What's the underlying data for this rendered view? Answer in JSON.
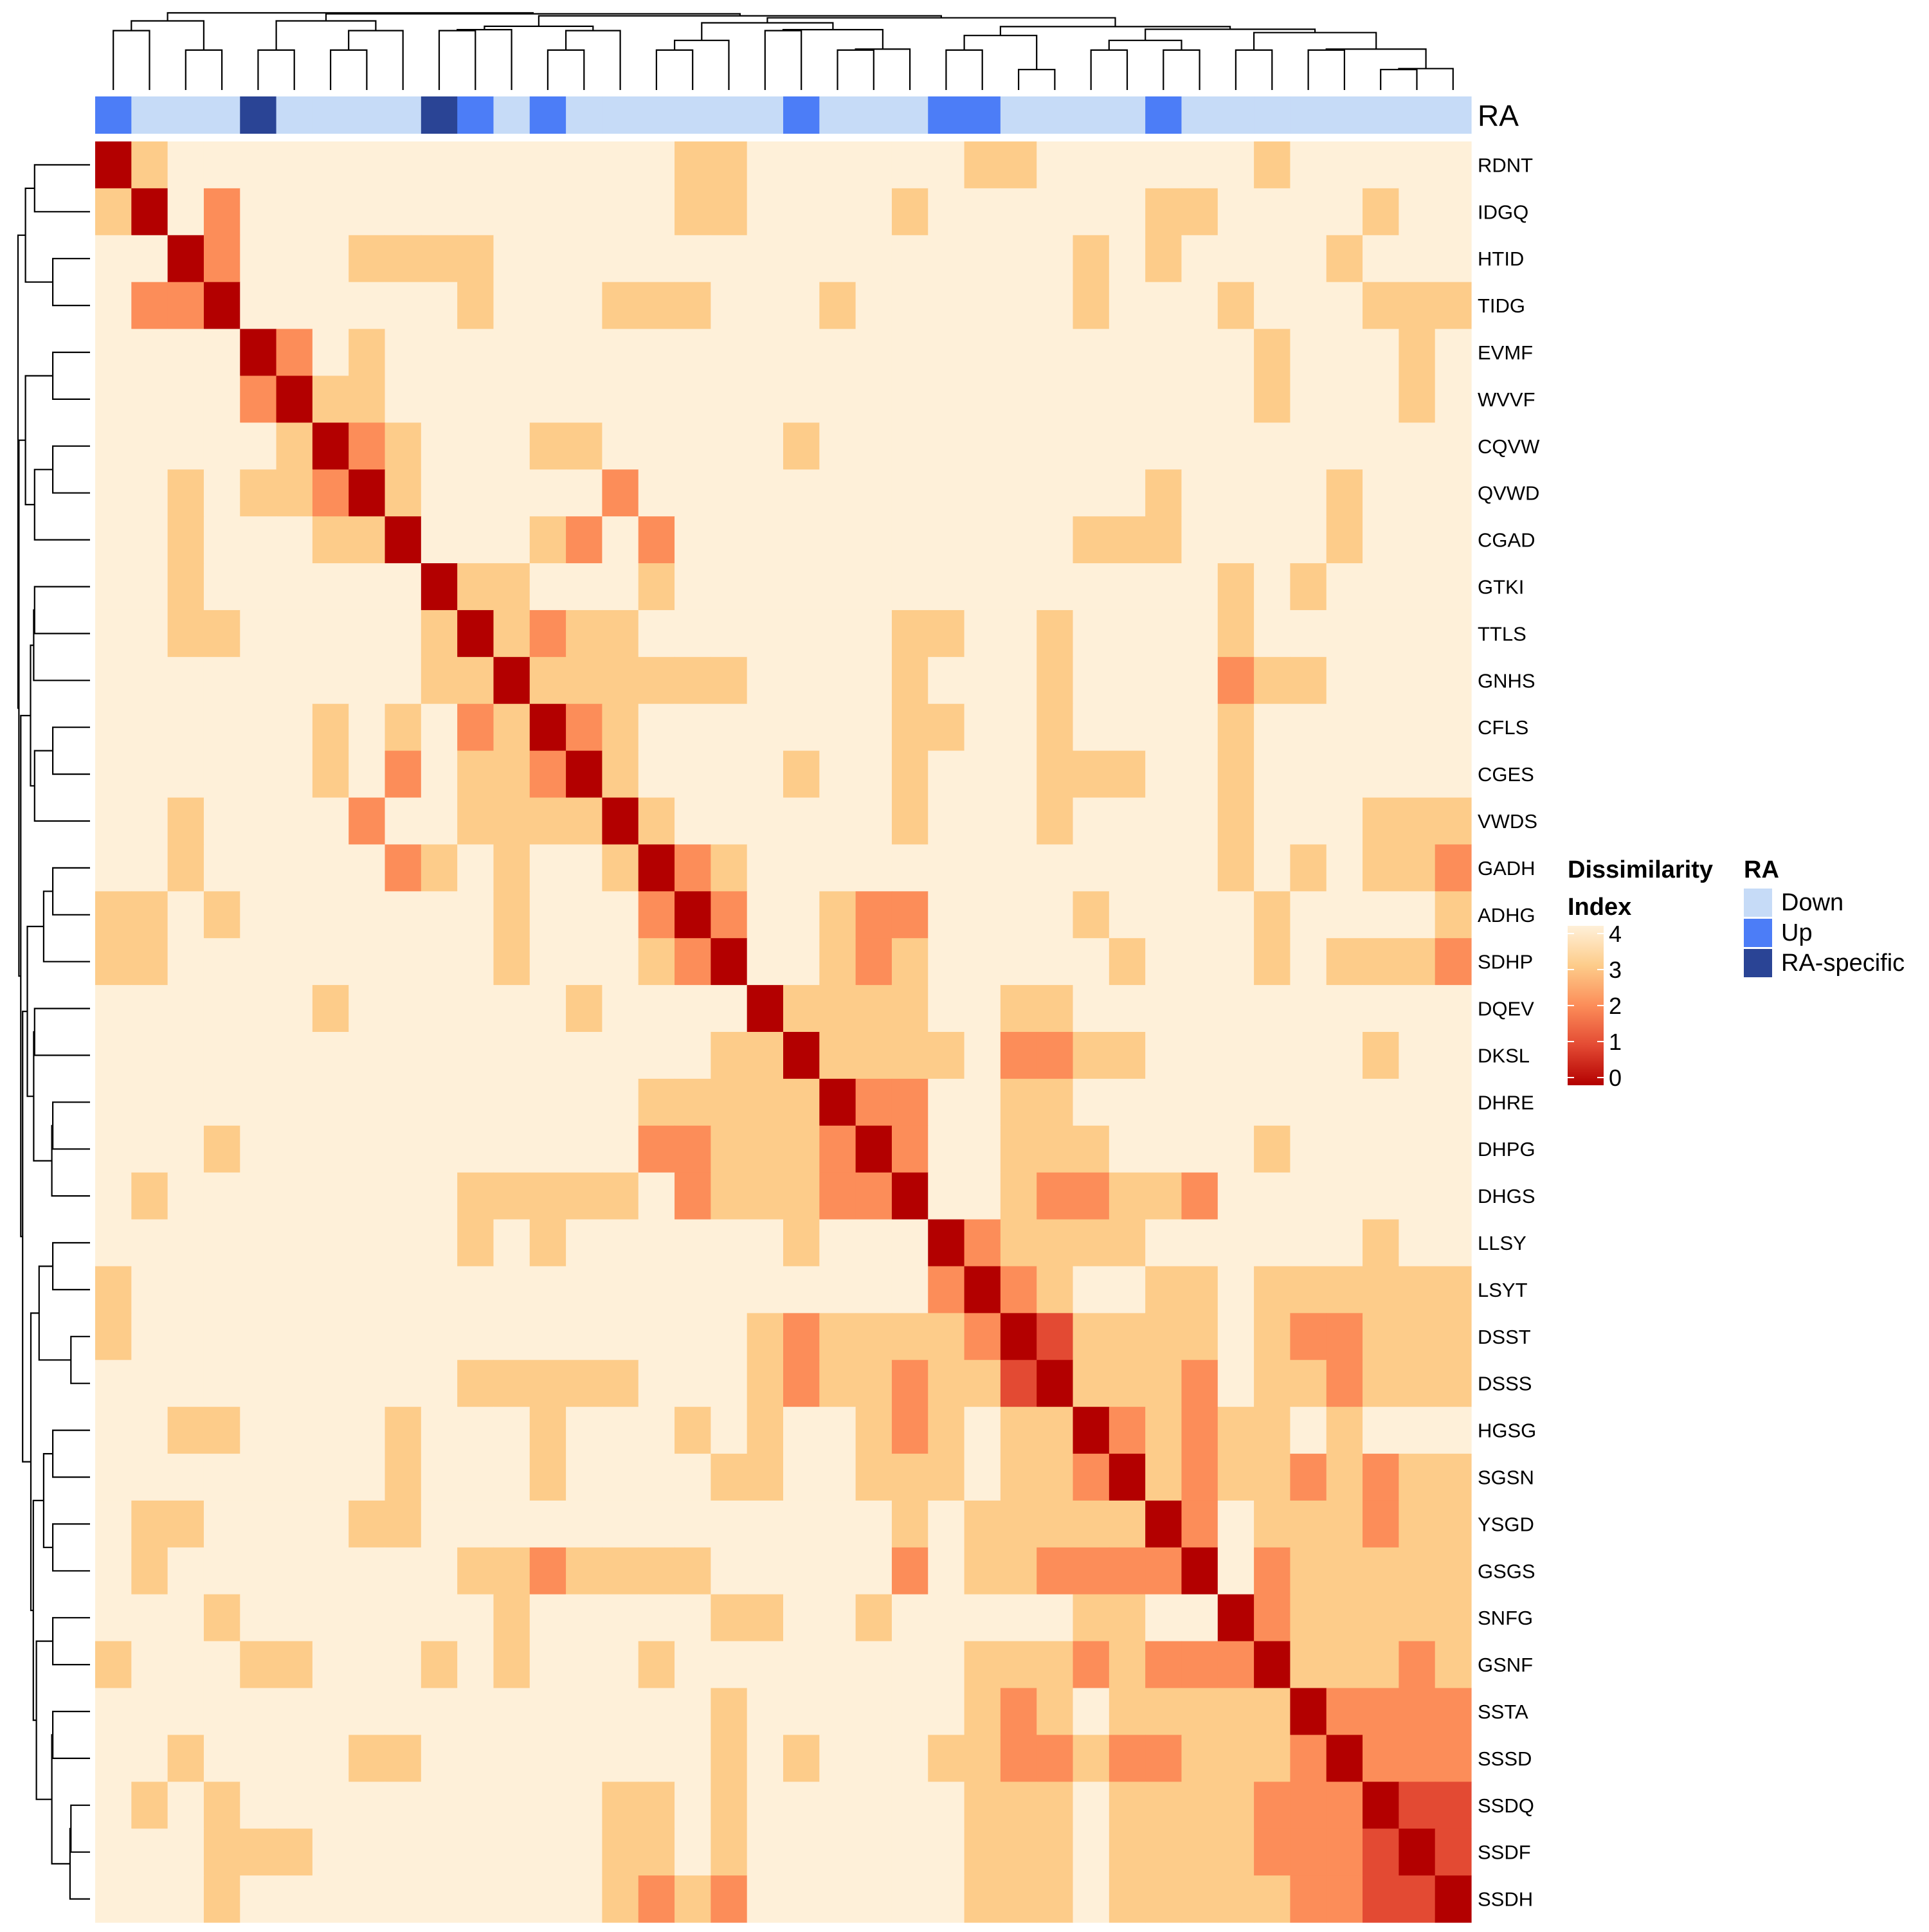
{
  "chart_data": {
    "type": "heatmap",
    "labels": [
      "RDNT",
      "IDGQ",
      "HTID",
      "TIDG",
      "EVMF",
      "WVVF",
      "CQVW",
      "QVWD",
      "CGAD",
      "GTKI",
      "TTLS",
      "GNHS",
      "CFLS",
      "CGES",
      "VWDS",
      "GADH",
      "ADHG",
      "SDHP",
      "DQEV",
      "DKSL",
      "DHRE",
      "DHPG",
      "DHGS",
      "LLSY",
      "LSYT",
      "DSST",
      "DSSS",
      "HGSG",
      "SGSN",
      "YSGD",
      "GSGS",
      "SNFG",
      "GSNF",
      "SSTA",
      "SSSD",
      "SSDQ",
      "SSDF",
      "SSDH"
    ],
    "ra_groups": [
      "Up",
      "Down",
      "Down",
      "Down",
      "RA-specific",
      "Down",
      "Down",
      "Down",
      "Down",
      "RA-specific",
      "Up",
      "Down",
      "Up",
      "Down",
      "Down",
      "Down",
      "Down",
      "Down",
      "Down",
      "Up",
      "Down",
      "Down",
      "Down",
      "Up",
      "Up",
      "Down",
      "Down",
      "Down",
      "Down",
      "Up",
      "Down",
      "Down",
      "Down",
      "Down",
      "Down",
      "Down",
      "Down",
      "Down"
    ],
    "matrix": [
      [
        0,
        3,
        4,
        4,
        4,
        4,
        4,
        4,
        4,
        4,
        4,
        4,
        4,
        4,
        4,
        4,
        3,
        3,
        4,
        4,
        4,
        4,
        4,
        4,
        3,
        3,
        4,
        4,
        4,
        4,
        4,
        4,
        3,
        4,
        4,
        4,
        4,
        4
      ],
      [
        3,
        0,
        4,
        2,
        4,
        4,
        4,
        4,
        4,
        4,
        4,
        4,
        4,
        4,
        4,
        4,
        3,
        3,
        4,
        4,
        4,
        4,
        3,
        4,
        4,
        4,
        4,
        4,
        4,
        3,
        3,
        4,
        4,
        4,
        4,
        3,
        4,
        4
      ],
      [
        4,
        4,
        0,
        2,
        4,
        4,
        4,
        3,
        3,
        3,
        3,
        4,
        4,
        4,
        4,
        4,
        4,
        4,
        4,
        4,
        4,
        4,
        4,
        4,
        4,
        4,
        4,
        3,
        4,
        3,
        4,
        4,
        4,
        4,
        3,
        4,
        4,
        4
      ],
      [
        4,
        2,
        2,
        0,
        4,
        4,
        4,
        4,
        4,
        4,
        3,
        4,
        4,
        4,
        3,
        3,
        3,
        4,
        4,
        4,
        3,
        4,
        4,
        4,
        4,
        4,
        4,
        3,
        4,
        4,
        4,
        3,
        4,
        4,
        4,
        3,
        3,
        3
      ],
      [
        4,
        4,
        4,
        4,
        0,
        2,
        4,
        3,
        4,
        4,
        4,
        4,
        4,
        4,
        4,
        4,
        4,
        4,
        4,
        4,
        4,
        4,
        4,
        4,
        4,
        4,
        4,
        4,
        4,
        4,
        4,
        4,
        3,
        4,
        4,
        4,
        3,
        4
      ],
      [
        4,
        4,
        4,
        4,
        2,
        0,
        3,
        3,
        4,
        4,
        4,
        4,
        4,
        4,
        4,
        4,
        4,
        4,
        4,
        4,
        4,
        4,
        4,
        4,
        4,
        4,
        4,
        4,
        4,
        4,
        4,
        4,
        3,
        4,
        4,
        4,
        3,
        4
      ],
      [
        4,
        4,
        4,
        4,
        4,
        3,
        0,
        2,
        3,
        4,
        4,
        4,
        3,
        3,
        4,
        4,
        4,
        4,
        4,
        3,
        4,
        4,
        4,
        4,
        4,
        4,
        4,
        4,
        4,
        4,
        4,
        4,
        4,
        4,
        4,
        4,
        4,
        4
      ],
      [
        4,
        4,
        3,
        4,
        3,
        3,
        2,
        0,
        3,
        4,
        4,
        4,
        4,
        4,
        2,
        4,
        4,
        4,
        4,
        4,
        4,
        4,
        4,
        4,
        4,
        4,
        4,
        4,
        4,
        3,
        4,
        4,
        4,
        4,
        3,
        4,
        4,
        4
      ],
      [
        4,
        4,
        3,
        4,
        4,
        4,
        3,
        3,
        0,
        4,
        4,
        4,
        3,
        2,
        4,
        2,
        4,
        4,
        4,
        4,
        4,
        4,
        4,
        4,
        4,
        4,
        4,
        3,
        3,
        3,
        4,
        4,
        4,
        4,
        3,
        4,
        4,
        4
      ],
      [
        4,
        4,
        3,
        4,
        4,
        4,
        4,
        4,
        4,
        0,
        3,
        3,
        4,
        4,
        4,
        3,
        4,
        4,
        4,
        4,
        4,
        4,
        4,
        4,
        4,
        4,
        4,
        4,
        4,
        4,
        4,
        3,
        4,
        3,
        4,
        4,
        4,
        4
      ],
      [
        4,
        4,
        3,
        3,
        4,
        4,
        4,
        4,
        4,
        3,
        0,
        3,
        2,
        3,
        3,
        4,
        4,
        4,
        4,
        4,
        4,
        4,
        3,
        3,
        4,
        4,
        3,
        4,
        4,
        4,
        4,
        3,
        4,
        4,
        4,
        4,
        4,
        4
      ],
      [
        4,
        4,
        4,
        4,
        4,
        4,
        4,
        4,
        4,
        3,
        3,
        0,
        3,
        3,
        3,
        3,
        3,
        3,
        4,
        4,
        4,
        4,
        3,
        4,
        4,
        4,
        3,
        4,
        4,
        4,
        4,
        2,
        3,
        3,
        4,
        4,
        4,
        4
      ],
      [
        4,
        4,
        4,
        4,
        4,
        4,
        3,
        4,
        3,
        4,
        2,
        3,
        0,
        2,
        3,
        4,
        4,
        4,
        4,
        4,
        4,
        4,
        3,
        3,
        4,
        4,
        3,
        4,
        4,
        4,
        4,
        3,
        4,
        4,
        4,
        4,
        4,
        4
      ],
      [
        4,
        4,
        4,
        4,
        4,
        4,
        3,
        4,
        2,
        4,
        3,
        3,
        2,
        0,
        3,
        4,
        4,
        4,
        4,
        3,
        4,
        4,
        3,
        4,
        4,
        4,
        3,
        3,
        3,
        4,
        4,
        3,
        4,
        4,
        4,
        4,
        4,
        4
      ],
      [
        4,
        4,
        3,
        4,
        4,
        4,
        4,
        2,
        4,
        4,
        3,
        3,
        3,
        3,
        0,
        3,
        4,
        4,
        4,
        4,
        4,
        4,
        3,
        4,
        4,
        4,
        3,
        4,
        4,
        4,
        4,
        3,
        4,
        4,
        4,
        3,
        3,
        3
      ],
      [
        4,
        4,
        3,
        4,
        4,
        4,
        4,
        4,
        2,
        3,
        4,
        3,
        4,
        4,
        3,
        0,
        2,
        3,
        4,
        4,
        4,
        4,
        4,
        4,
        4,
        4,
        4,
        4,
        4,
        4,
        4,
        3,
        4,
        3,
        4,
        3,
        3,
        2
      ],
      [
        3,
        3,
        4,
        3,
        4,
        4,
        4,
        4,
        4,
        4,
        4,
        3,
        4,
        4,
        4,
        2,
        0,
        2,
        4,
        4,
        3,
        2,
        2,
        4,
        4,
        4,
        4,
        3,
        4,
        4,
        4,
        4,
        3,
        4,
        4,
        4,
        4,
        3
      ],
      [
        3,
        3,
        4,
        4,
        4,
        4,
        4,
        4,
        4,
        4,
        4,
        3,
        4,
        4,
        4,
        3,
        2,
        0,
        4,
        4,
        3,
        2,
        3,
        4,
        4,
        4,
        4,
        4,
        3,
        4,
        4,
        4,
        3,
        4,
        3,
        3,
        3,
        2
      ],
      [
        4,
        4,
        4,
        4,
        4,
        4,
        3,
        4,
        4,
        4,
        4,
        4,
        4,
        3,
        4,
        4,
        4,
        4,
        0,
        3,
        3,
        3,
        3,
        4,
        4,
        3,
        3,
        4,
        4,
        4,
        4,
        4,
        4,
        4,
        4,
        4,
        4,
        4
      ],
      [
        4,
        4,
        4,
        4,
        4,
        4,
        4,
        4,
        4,
        4,
        4,
        4,
        4,
        4,
        4,
        4,
        4,
        3,
        3,
        0,
        3,
        3,
        3,
        3,
        4,
        2,
        2,
        3,
        3,
        4,
        4,
        4,
        4,
        4,
        4,
        3,
        4,
        4
      ],
      [
        4,
        4,
        4,
        4,
        4,
        4,
        4,
        4,
        4,
        4,
        4,
        4,
        4,
        4,
        4,
        3,
        3,
        3,
        3,
        3,
        0,
        2,
        2,
        4,
        4,
        3,
        3,
        4,
        4,
        4,
        4,
        4,
        4,
        4,
        4,
        4,
        4,
        4
      ],
      [
        4,
        4,
        4,
        3,
        4,
        4,
        4,
        4,
        4,
        4,
        4,
        4,
        4,
        4,
        4,
        2,
        2,
        3,
        3,
        3,
        2,
        0,
        2,
        4,
        4,
        3,
        3,
        3,
        4,
        4,
        4,
        4,
        3,
        4,
        4,
        4,
        4,
        4
      ],
      [
        4,
        3,
        4,
        4,
        4,
        4,
        4,
        4,
        4,
        4,
        3,
        3,
        3,
        3,
        3,
        4,
        2,
        3,
        3,
        3,
        2,
        2,
        0,
        4,
        4,
        3,
        2,
        2,
        3,
        3,
        2,
        4,
        4,
        4,
        4,
        4,
        4,
        4
      ],
      [
        4,
        4,
        4,
        4,
        4,
        4,
        4,
        4,
        4,
        4,
        3,
        4,
        3,
        4,
        4,
        4,
        4,
        4,
        4,
        3,
        4,
        4,
        4,
        0,
        2,
        3,
        3,
        3,
        3,
        4,
        4,
        4,
        4,
        4,
        4,
        3,
        4,
        4
      ],
      [
        3,
        4,
        4,
        4,
        4,
        4,
        4,
        4,
        4,
        4,
        4,
        4,
        4,
        4,
        4,
        4,
        4,
        4,
        4,
        4,
        4,
        4,
        4,
        2,
        0,
        2,
        3,
        4,
        4,
        3,
        3,
        4,
        3,
        3,
        3,
        3,
        3,
        3
      ],
      [
        3,
        4,
        4,
        4,
        4,
        4,
        4,
        4,
        4,
        4,
        4,
        4,
        4,
        4,
        4,
        4,
        4,
        4,
        3,
        2,
        3,
        3,
        3,
        3,
        2,
        0,
        1,
        3,
        3,
        3,
        3,
        4,
        3,
        2,
        2,
        3,
        3,
        3
      ],
      [
        4,
        4,
        4,
        4,
        4,
        4,
        4,
        4,
        4,
        4,
        3,
        3,
        3,
        3,
        3,
        4,
        4,
        4,
        3,
        2,
        3,
        3,
        2,
        3,
        3,
        1,
        0,
        3,
        3,
        3,
        2,
        4,
        3,
        3,
        2,
        3,
        3,
        3
      ],
      [
        4,
        4,
        3,
        3,
        4,
        4,
        4,
        4,
        3,
        4,
        4,
        4,
        3,
        4,
        4,
        4,
        3,
        4,
        3,
        4,
        4,
        3,
        2,
        3,
        4,
        3,
        3,
        0,
        2,
        3,
        2,
        3,
        3,
        4,
        3,
        4,
        4,
        4
      ],
      [
        4,
        4,
        4,
        4,
        4,
        4,
        4,
        4,
        3,
        4,
        4,
        4,
        3,
        4,
        4,
        4,
        4,
        3,
        3,
        4,
        4,
        3,
        3,
        3,
        4,
        3,
        3,
        2,
        0,
        3,
        2,
        3,
        3,
        2,
        3,
        2,
        3,
        3
      ],
      [
        4,
        3,
        3,
        4,
        4,
        4,
        4,
        3,
        3,
        4,
        4,
        4,
        4,
        4,
        4,
        4,
        4,
        4,
        4,
        4,
        4,
        4,
        3,
        4,
        3,
        3,
        3,
        3,
        3,
        0,
        2,
        4,
        3,
        3,
        3,
        2,
        3,
        3
      ],
      [
        4,
        3,
        4,
        4,
        4,
        4,
        4,
        4,
        4,
        4,
        3,
        3,
        2,
        3,
        3,
        3,
        3,
        4,
        4,
        4,
        4,
        4,
        2,
        4,
        3,
        3,
        2,
        2,
        2,
        2,
        0,
        4,
        2,
        3,
        3,
        3,
        3,
        3
      ],
      [
        4,
        4,
        4,
        3,
        4,
        4,
        4,
        4,
        4,
        4,
        4,
        3,
        4,
        4,
        4,
        4,
        4,
        3,
        3,
        4,
        4,
        3,
        4,
        4,
        4,
        4,
        4,
        3,
        3,
        4,
        4,
        0,
        2,
        3,
        3,
        3,
        3,
        3
      ],
      [
        3,
        4,
        4,
        4,
        3,
        3,
        4,
        4,
        4,
        3,
        4,
        3,
        4,
        4,
        4,
        3,
        4,
        4,
        4,
        4,
        4,
        4,
        4,
        4,
        3,
        3,
        3,
        2,
        3,
        2,
        2,
        2,
        0,
        3,
        3,
        3,
        2,
        3
      ],
      [
        4,
        4,
        4,
        4,
        4,
        4,
        4,
        4,
        4,
        4,
        4,
        4,
        4,
        4,
        4,
        4,
        4,
        3,
        4,
        4,
        4,
        4,
        4,
        4,
        3,
        2,
        3,
        4,
        3,
        3,
        3,
        3,
        3,
        0,
        2,
        2,
        2,
        2
      ],
      [
        4,
        4,
        3,
        4,
        4,
        4,
        4,
        3,
        3,
        4,
        4,
        4,
        4,
        4,
        4,
        4,
        4,
        3,
        4,
        3,
        4,
        4,
        4,
        3,
        3,
        2,
        2,
        3,
        2,
        2,
        3,
        3,
        3,
        2,
        0,
        2,
        2,
        2
      ],
      [
        4,
        3,
        4,
        3,
        4,
        4,
        4,
        4,
        4,
        4,
        4,
        4,
        4,
        4,
        3,
        3,
        4,
        3,
        4,
        4,
        4,
        4,
        4,
        4,
        3,
        3,
        3,
        4,
        3,
        3,
        3,
        3,
        2,
        2,
        2,
        0,
        1,
        1
      ],
      [
        4,
        4,
        4,
        3,
        3,
        3,
        4,
        4,
        4,
        4,
        4,
        4,
        4,
        4,
        3,
        3,
        4,
        3,
        4,
        4,
        4,
        4,
        4,
        4,
        3,
        3,
        3,
        4,
        3,
        3,
        3,
        3,
        2,
        2,
        2,
        1,
        0,
        1
      ],
      [
        4,
        4,
        4,
        3,
        4,
        4,
        4,
        4,
        4,
        4,
        4,
        4,
        4,
        4,
        3,
        2,
        3,
        2,
        4,
        4,
        4,
        4,
        4,
        4,
        3,
        3,
        3,
        4,
        3,
        3,
        3,
        3,
        3,
        2,
        2,
        1,
        1,
        0
      ]
    ],
    "color_scale": {
      "0": "#b30000",
      "1": "#e34a33",
      "2": "#fc8d59",
      "3": "#fdcc8a",
      "4": "#fef0d9"
    },
    "legend_ticks": [
      4,
      3,
      2,
      1,
      0
    ],
    "ra_annotation_label": "RA",
    "legend": {
      "heat_title_line1": "Dissimilarity",
      "heat_title_line2": "Index",
      "ra_title": "RA",
      "ra_items": [
        {
          "label": "Down",
          "color": "#c6dbf7"
        },
        {
          "label": "Up",
          "color": "#4c7df7"
        },
        {
          "label": "RA-specific",
          "color": "#2a4495"
        }
      ]
    }
  }
}
